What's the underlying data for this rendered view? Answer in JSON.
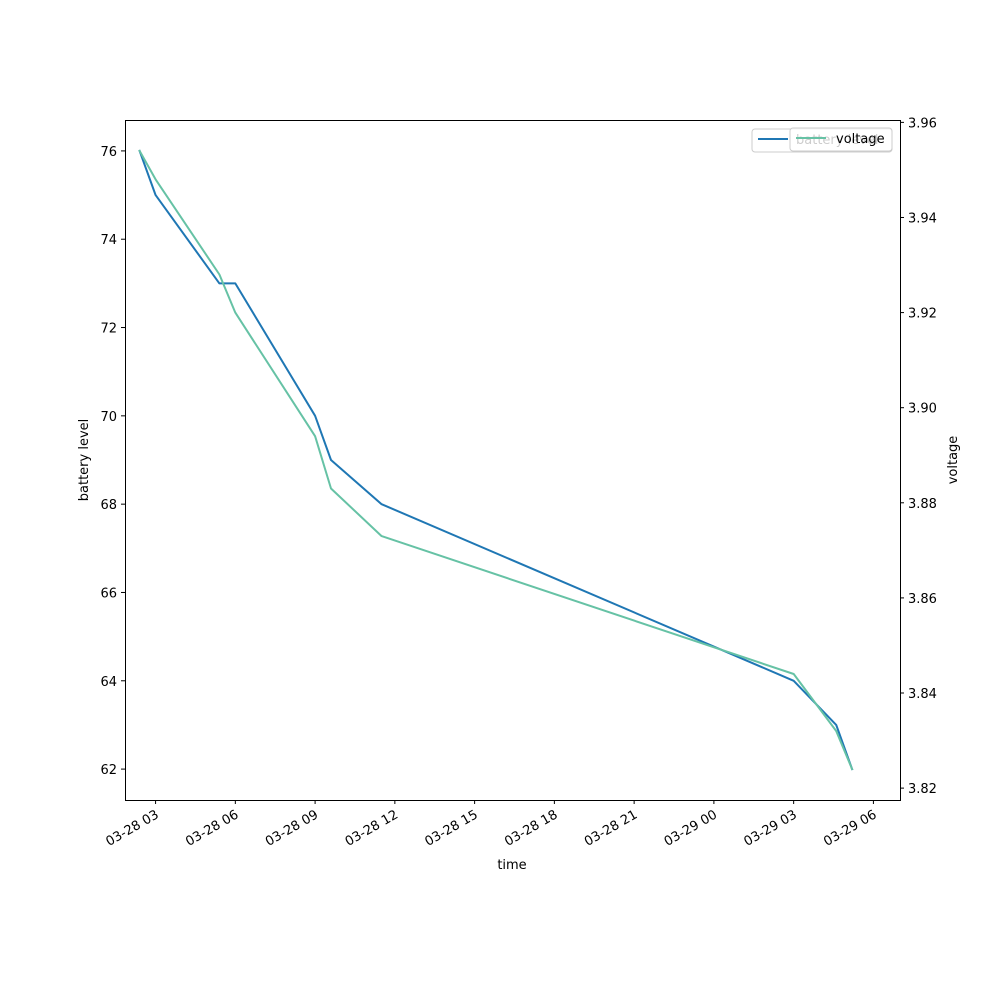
{
  "chart_data": {
    "type": "line",
    "xlabel": "time",
    "ylabel": "battery level",
    "y2label": "voltage",
    "x_ticks": [
      "03-28 03",
      "03-28 06",
      "03-28 09",
      "03-28 12",
      "03-28 15",
      "03-28 18",
      "03-28 21",
      "03-29 00",
      "03-29 03",
      "03-29 06"
    ],
    "x_tick_hours": [
      3,
      6,
      9,
      12,
      15,
      18,
      21,
      24,
      27,
      30
    ],
    "xlim_hours": [
      1.85,
      31.0
    ],
    "ylim": [
      61.3,
      76.7
    ],
    "y2lim": [
      3.8175,
      3.9605
    ],
    "y_ticks": [
      "62",
      "64",
      "66",
      "68",
      "70",
      "72",
      "74",
      "76"
    ],
    "y2_ticks": [
      "3.82",
      "3.84",
      "3.86",
      "3.88",
      "3.90",
      "3.92",
      "3.94",
      "3.96"
    ],
    "legend_position": "top-right",
    "series": [
      {
        "name": "battery level",
        "axis": "left",
        "color": "#1f77b4",
        "x_hours": [
          2.4,
          3.0,
          5.4,
          6.0,
          9.0,
          9.6,
          11.5,
          27.0,
          28.6,
          29.2
        ],
        "values": [
          76,
          75,
          73,
          73,
          70,
          69,
          68,
          64,
          63,
          62
        ]
      },
      {
        "name": "voltage",
        "axis": "right",
        "color": "#66c2a5",
        "x_hours": [
          2.4,
          3.0,
          5.4,
          6.0,
          9.0,
          9.6,
          11.5,
          27.0,
          28.6,
          29.2
        ],
        "values": [
          3.954,
          3.948,
          3.928,
          3.92,
          3.894,
          3.883,
          3.873,
          3.844,
          3.832,
          3.824
        ]
      }
    ],
    "legend": {
      "entries": [
        {
          "label": "battery level",
          "color": "#1f77b4"
        },
        {
          "label": "voltage",
          "color": "#66c2a5"
        }
      ]
    }
  }
}
